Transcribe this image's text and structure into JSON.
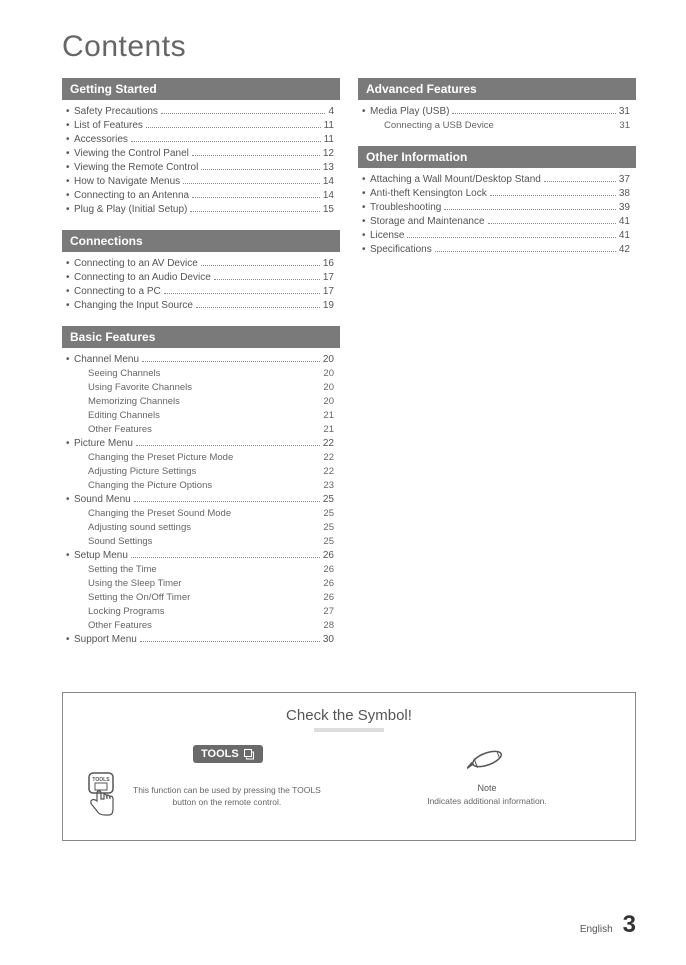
{
  "title": "Contents",
  "columns": {
    "left": [
      {
        "header": "Getting Started",
        "items": [
          {
            "title": "Safety Precautions",
            "page": "4"
          },
          {
            "title": "List of Features",
            "page": "11"
          },
          {
            "title": "Accessories",
            "page": "11"
          },
          {
            "title": "Viewing the Control Panel",
            "page": "12"
          },
          {
            "title": "Viewing the Remote Control",
            "page": "13"
          },
          {
            "title": "How to Navigate Menus",
            "page": "14"
          },
          {
            "title": "Connecting to an Antenna",
            "page": "14"
          },
          {
            "title": "Plug & Play (Initial Setup)",
            "page": "15"
          }
        ]
      },
      {
        "header": "Connections",
        "items": [
          {
            "title": "Connecting to an AV Device",
            "page": "16"
          },
          {
            "title": "Connecting to an Audio Device",
            "page": "17"
          },
          {
            "title": "Connecting to a PC",
            "page": "17"
          },
          {
            "title": "Changing the Input Source",
            "page": "19"
          }
        ]
      },
      {
        "header": "Basic Features",
        "items": [
          {
            "title": "Channel Menu",
            "page": "20",
            "subs": [
              {
                "title": "Seeing Channels",
                "page": "20"
              },
              {
                "title": "Using Favorite Channels",
                "page": "20"
              },
              {
                "title": "Memorizing Channels",
                "page": "20"
              },
              {
                "title": "Editing Channels",
                "page": "21"
              },
              {
                "title": "Other Features",
                "page": "21"
              }
            ]
          },
          {
            "title": "Picture Menu",
            "page": "22",
            "subs": [
              {
                "title": "Changing the Preset Picture Mode",
                "page": "22"
              },
              {
                "title": "Adjusting Picture Settings",
                "page": "22"
              },
              {
                "title": "Changing the Picture Options",
                "page": "23"
              }
            ]
          },
          {
            "title": "Sound Menu",
            "page": "25",
            "subs": [
              {
                "title": "Changing the Preset Sound Mode",
                "page": "25"
              },
              {
                "title": "Adjusting sound settings",
                "page": "25"
              },
              {
                "title": "Sound Settings",
                "page": "25"
              }
            ]
          },
          {
            "title": "Setup Menu",
            "page": "26",
            "subs": [
              {
                "title": "Setting the Time",
                "page": "26"
              },
              {
                "title": "Using the Sleep Timer",
                "page": "26"
              },
              {
                "title": "Setting the On/Off Timer",
                "page": "26"
              },
              {
                "title": "Locking Programs",
                "page": "27"
              },
              {
                "title": "Other Features",
                "page": "28"
              }
            ]
          },
          {
            "title": "Support Menu",
            "page": "30"
          }
        ]
      }
    ],
    "right": [
      {
        "header": "Advanced Features",
        "items": [
          {
            "title": "Media Play (USB)",
            "page": "31",
            "subs": [
              {
                "title": "Connecting a USB Device",
                "page": "31"
              }
            ]
          }
        ]
      },
      {
        "header": "Other Information",
        "items": [
          {
            "title": "Attaching a Wall Mount/Desktop Stand",
            "page": "37"
          },
          {
            "title": "Anti-theft Kensington Lock",
            "page": "38"
          },
          {
            "title": "Troubleshooting",
            "page": "39"
          },
          {
            "title": "Storage and Maintenance",
            "page": "41"
          },
          {
            "title": "License",
            "page": "41"
          },
          {
            "title": "Specifications",
            "page": "42"
          }
        ]
      }
    ]
  },
  "symbol_box": {
    "title": "Check the Symbol!",
    "tools_badge": "TOOLS",
    "tools_mini": "TOOLS",
    "tools_desc1": "This function can be used by pressing the TOOLS",
    "tools_desc2": "button on the remote control.",
    "note_label": "Note",
    "note_desc": "Indicates additional information."
  },
  "footer": {
    "language": "English",
    "page_number": "3"
  },
  "colors": {
    "section_header_bg": "#7a7a7a",
    "section_header_fg": "#ffffff",
    "text": "#555555",
    "dots": "#888888"
  }
}
